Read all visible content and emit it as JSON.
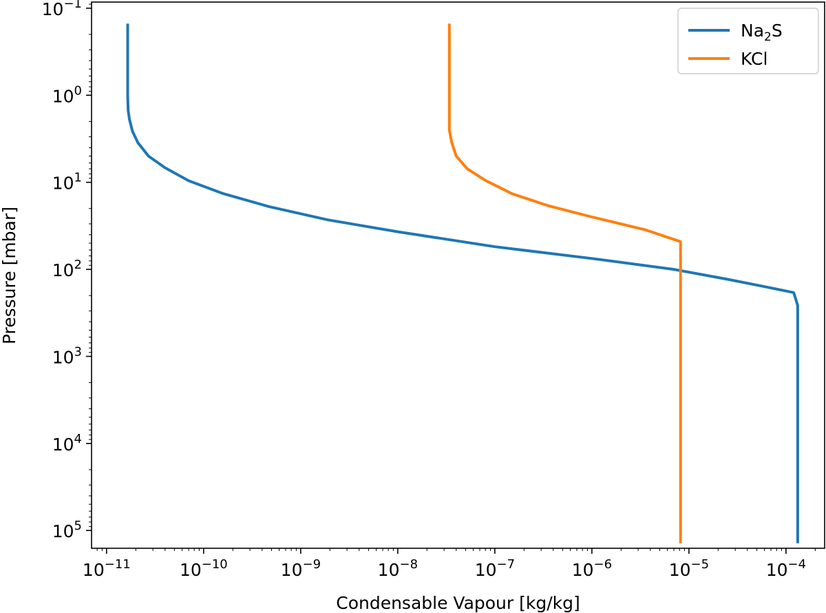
{
  "chart_data": {
    "type": "line",
    "xlabel": "Condensable Vapour [kg/kg]",
    "ylabel": "Pressure [mbar]",
    "xscale": "log",
    "yscale": "log",
    "y_inverted": true,
    "xlim": [
      7e-12,
      0.00025
    ],
    "ylim": [
      160000.0,
      0.085
    ],
    "xticks": [
      {
        "value": 1e-11,
        "base": "10",
        "exp": "−11"
      },
      {
        "value": 1e-10,
        "base": "10",
        "exp": "−10"
      },
      {
        "value": 1e-09,
        "base": "10",
        "exp": "−9"
      },
      {
        "value": 1e-08,
        "base": "10",
        "exp": "−8"
      },
      {
        "value": 1e-07,
        "base": "10",
        "exp": "−7"
      },
      {
        "value": 1e-06,
        "base": "10",
        "exp": "−6"
      },
      {
        "value": 1e-05,
        "base": "10",
        "exp": "−5"
      },
      {
        "value": 0.0001,
        "base": "10",
        "exp": "−4"
      }
    ],
    "yticks": [
      {
        "value": 0.1,
        "base": "10",
        "exp": "−1"
      },
      {
        "value": 1,
        "base": "10",
        "exp": "0"
      },
      {
        "value": 10,
        "base": "10",
        "exp": "1"
      },
      {
        "value": 100,
        "base": "10",
        "exp": "2"
      },
      {
        "value": 1000,
        "base": "10",
        "exp": "3"
      },
      {
        "value": 10000,
        "base": "10",
        "exp": "4"
      },
      {
        "value": 100000,
        "base": "10",
        "exp": "5"
      }
    ],
    "grid": false,
    "legend_position": "top-right",
    "series": [
      {
        "name": "Na2S",
        "legend_label": {
          "main": "Na",
          "sub": "2",
          "tail": "S"
        },
        "color": "#1f77b4",
        "points": [
          {
            "x": 1.65e-11,
            "p": 0.15
          },
          {
            "x": 1.65e-11,
            "p": 1.0
          },
          {
            "x": 1.67e-11,
            "p": 1.5
          },
          {
            "x": 1.72e-11,
            "p": 1.9
          },
          {
            "x": 1.85e-11,
            "p": 2.6
          },
          {
            "x": 2.1e-11,
            "p": 3.5
          },
          {
            "x": 2.7e-11,
            "p": 5.0
          },
          {
            "x": 4e-11,
            "p": 6.8
          },
          {
            "x": 7e-11,
            "p": 9.6
          },
          {
            "x": 1.6e-10,
            "p": 13.5
          },
          {
            "x": 4.7e-10,
            "p": 19.0
          },
          {
            "x": 1.9e-09,
            "p": 27.0
          },
          {
            "x": 1e-08,
            "p": 37.0
          },
          {
            "x": 1e-07,
            "p": 55.0
          },
          {
            "x": 1e-06,
            "p": 75.0
          },
          {
            "x": 7e-06,
            "p": 100.0
          },
          {
            "x": 2.5e-05,
            "p": 130.0
          },
          {
            "x": 5.5e-05,
            "p": 155.0
          },
          {
            "x": 0.00012,
            "p": 185.0
          },
          {
            "x": 0.000132,
            "p": 260.0
          },
          {
            "x": 0.000132,
            "p": 140000
          }
        ]
      },
      {
        "name": "KCl",
        "legend_label": {
          "main": "KCl",
          "sub": "",
          "tail": ""
        },
        "color": "#ff7f0e",
        "points": [
          {
            "x": 3.4e-08,
            "p": 0.15
          },
          {
            "x": 3.4e-08,
            "p": 2.5
          },
          {
            "x": 3.6e-08,
            "p": 3.5
          },
          {
            "x": 4e-08,
            "p": 5.0
          },
          {
            "x": 5.2e-08,
            "p": 7.0
          },
          {
            "x": 8e-08,
            "p": 9.5
          },
          {
            "x": 1.5e-07,
            "p": 13.5
          },
          {
            "x": 3.5e-07,
            "p": 18.5
          },
          {
            "x": 1e-06,
            "p": 25.0
          },
          {
            "x": 3.5e-06,
            "p": 35.0
          },
          {
            "x": 8.2e-06,
            "p": 48.0
          },
          {
            "x": 8.2e-06,
            "p": 140000
          }
        ]
      }
    ]
  }
}
